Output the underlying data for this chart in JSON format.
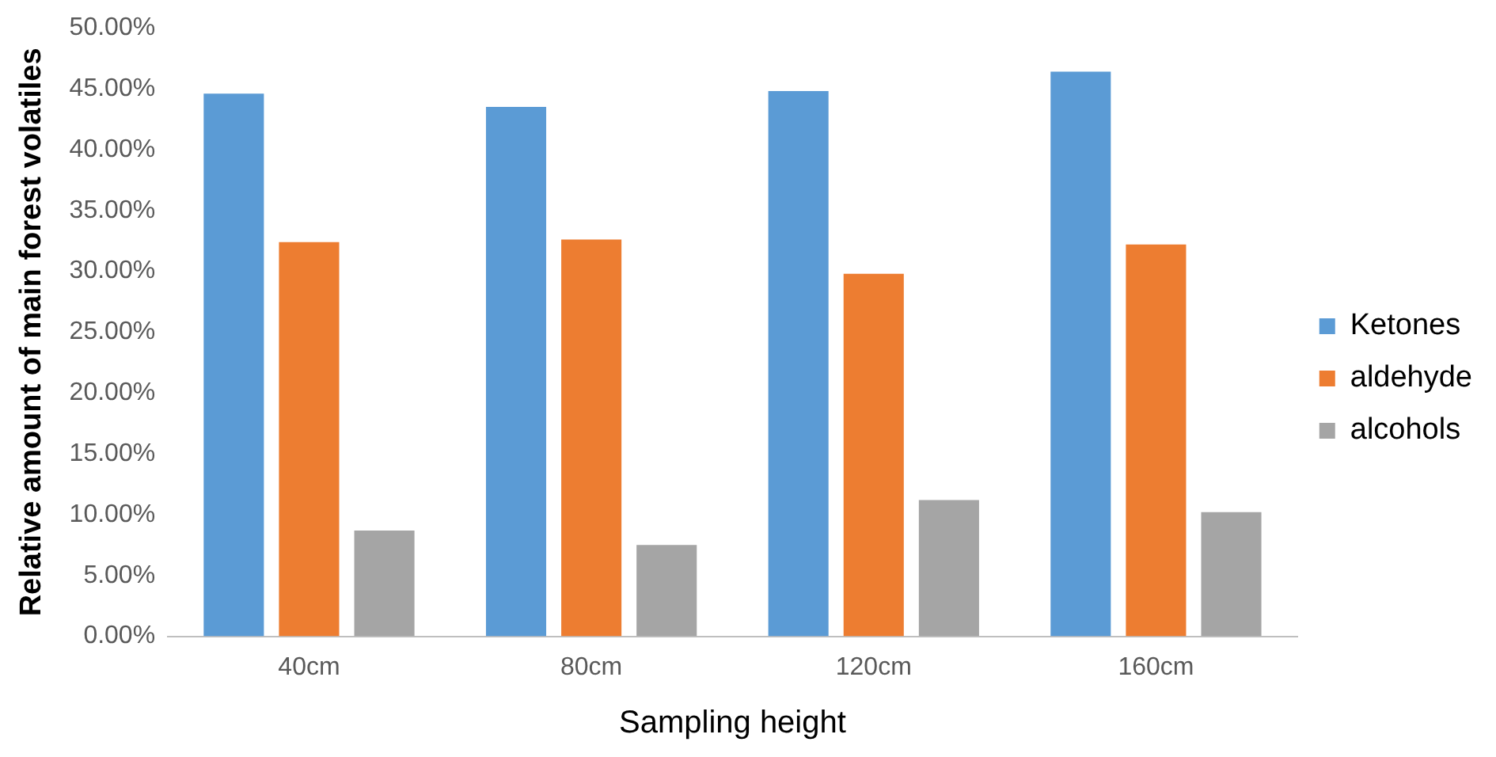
{
  "chart_data": {
    "type": "bar",
    "xlabel": "Sampling height",
    "ylabel": "Relative amount of main forest volatiles",
    "categories": [
      "40cm",
      "80cm",
      "120cm",
      "160cm"
    ],
    "series": [
      {
        "name": "Ketones",
        "color": "#5b9bd5",
        "values": [
          44.6,
          43.5,
          44.8,
          46.4
        ]
      },
      {
        "name": "aldehyde",
        "color": "#ed7d31",
        "values": [
          32.4,
          32.6,
          29.8,
          32.2
        ]
      },
      {
        "name": "alcohols",
        "color": "#a5a5a5",
        "values": [
          8.7,
          7.5,
          11.2,
          10.2
        ]
      }
    ],
    "ylim": [
      0,
      50
    ],
    "yticks": [
      {
        "value": 0,
        "label": "0.00%"
      },
      {
        "value": 5,
        "label": "5.00%"
      },
      {
        "value": 10,
        "label": "10.00%"
      },
      {
        "value": 15,
        "label": "15.00%"
      },
      {
        "value": 20,
        "label": "20.00%"
      },
      {
        "value": 25,
        "label": "25.00%"
      },
      {
        "value": 30,
        "label": "30.00%"
      },
      {
        "value": 35,
        "label": "35.00%"
      },
      {
        "value": 40,
        "label": "40.00%"
      },
      {
        "value": 45,
        "label": "45.00%"
      },
      {
        "value": 50,
        "label": "50.00%"
      }
    ],
    "grid": false,
    "legend": "right"
  }
}
